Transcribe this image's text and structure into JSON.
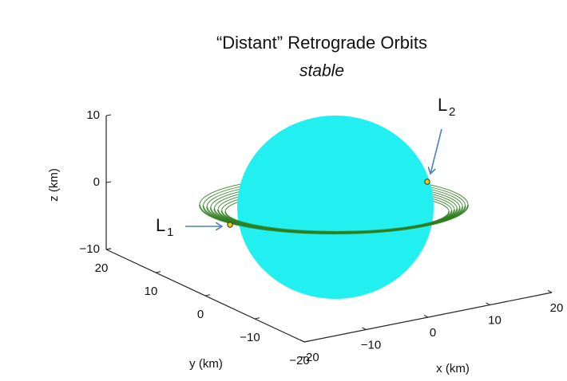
{
  "chart_data": {
    "type": "surface3d",
    "title": "“Distant” Retrograde Orbits",
    "subtitle": "stable",
    "xlabel": "x (km)",
    "ylabel": "y (km)",
    "zlabel": "z (km)",
    "xlim": [
      -20,
      20
    ],
    "ylim": [
      -20,
      20
    ],
    "zlim": [
      -10,
      10
    ],
    "xticks": [
      {
        "value": -20,
        "label": "−20"
      },
      {
        "value": -10,
        "label": "−10"
      },
      0,
      10,
      20
    ],
    "yticks": [
      {
        "value": -20,
        "label": "−20"
      },
      {
        "value": -10,
        "label": "−10"
      },
      0,
      10,
      20
    ],
    "zticks": [
      {
        "value": -10,
        "label": "−10"
      },
      0,
      10
    ],
    "annotations": [
      {
        "label": "L",
        "subscript": "1"
      },
      {
        "label": "L",
        "subscript": "2"
      }
    ],
    "sphere_color": "#22f0f0",
    "orbit_color": "#2e7d1e"
  }
}
